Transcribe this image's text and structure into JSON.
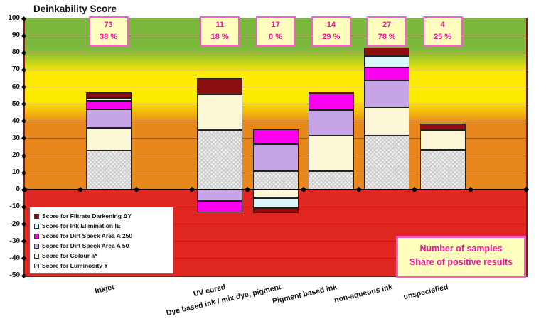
{
  "title": "Deinkability Score",
  "samples_box": {
    "line1": "Number of samples",
    "line2": "Share of positive results"
  },
  "colors": {
    "band_green": "#7BB83D",
    "band_yellow": "#FDEC00",
    "band_orange": "#E8871C",
    "band_red": "#DF2620",
    "annotation_bg": "#FFFFBE",
    "annotation_border": "#F75BCE",
    "annotation_text": "#F5109E",
    "filtrate_darkening": "#8C0F10",
    "ink_elimination": "#D9F7F9",
    "dirt_speck_a250": "#F900EE",
    "dirt_speck_a50": "#C7A4E8",
    "colour_a": "#FBF7D6",
    "luminosity_hatch_base": "#EDEDED"
  },
  "chart_data": {
    "type": "bar",
    "subtype": "stacked",
    "title": "Deinkability Score",
    "ylabel": "",
    "xlabel": "",
    "ylim": [
      -50,
      100
    ],
    "ytick_step": 10,
    "grid": true,
    "legend_position": "bottom-left",
    "background_bands": [
      {
        "from": 82,
        "to": 100,
        "color": "#7BB83D"
      },
      {
        "from": 52,
        "to": 68,
        "color": "#FDEC00"
      },
      {
        "from": 0,
        "to": 39,
        "color": "#E8871C"
      },
      {
        "from": -50,
        "to": 0,
        "color": "#DF2620"
      }
    ],
    "categories": [
      "Inkjet",
      "UV cured",
      "Dye based ink / mix dye, pigment",
      "Pigment based ink",
      "non-aqueous ink",
      "unspeciefied"
    ],
    "category_slots": [
      2,
      4,
      5,
      6,
      7,
      8
    ],
    "total_slots": 9,
    "annotations": [
      {
        "samples": "73",
        "share": "38 %"
      },
      {
        "samples": "11",
        "share": "18 %"
      },
      {
        "samples": "17",
        "share": "0 %"
      },
      {
        "samples": "14",
        "share": "29 %"
      },
      {
        "samples": "27",
        "share": "78 %"
      },
      {
        "samples": "4",
        "share": "25 %"
      }
    ],
    "series": [
      {
        "name": "Score for Luminosity Y",
        "color": "hatch",
        "values": [
          23,
          35,
          11,
          11,
          31.5,
          23.5
        ]
      },
      {
        "name": "Score for Colour a*",
        "color": "#FBF7D6",
        "values": [
          13,
          20.5,
          -5,
          20.5,
          16.5,
          11.5
        ]
      },
      {
        "name": "Score for Dirt Speck Area A 50",
        "color": "#C7A4E8",
        "values": [
          11,
          -6.5,
          15.5,
          15,
          16,
          0
        ]
      },
      {
        "name": "Score for Dirt Speck Area A 250",
        "color": "#F900EE",
        "values": [
          5,
          -6.5,
          9,
          9.5,
          7.5,
          0
        ]
      },
      {
        "name": "Score for Ink Elimination IE",
        "color": "#D9F7F9",
        "values": [
          1.5,
          0,
          -5.5,
          0,
          6.5,
          0
        ]
      },
      {
        "name": "Score for Filtrate Darkening ΔY",
        "color": "#8C0F10",
        "values": [
          3.5,
          9.5,
          -3,
          1.5,
          5,
          3.5
        ]
      }
    ],
    "bar_totals": [
      57,
      65,
      36,
      57.5,
      83,
      38.5
    ],
    "bar_minimums": [
      0,
      -13,
      -13.5,
      0,
      0,
      0
    ]
  }
}
